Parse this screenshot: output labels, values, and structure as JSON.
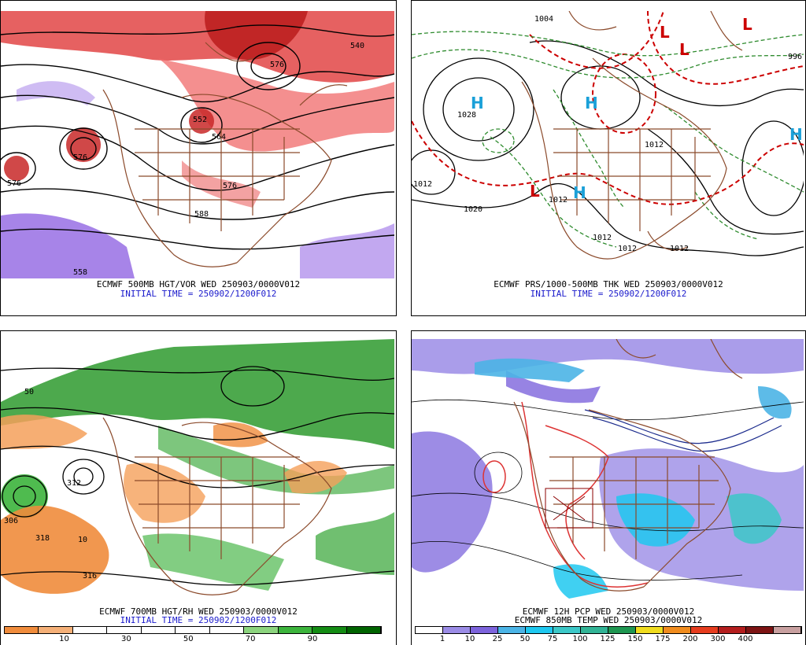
{
  "panels": {
    "top_left": {
      "caption_line1": "ECMWF 500MB HGT/VOR WED 250903/0000V012",
      "caption_line2": "INITIAL TIME = 250902/1200F012",
      "contour_labels": [
        "540",
        "576",
        "576",
        "552",
        "564",
        "576",
        "588",
        "558",
        "576"
      ]
    },
    "top_right": {
      "caption_line1": "ECMWF PRS/1000-500MB THK WED 250903/0000V012",
      "caption_line2": "INITIAL TIME = 250902/1200F012",
      "contour_labels": [
        "1028",
        "1012",
        "1020",
        "1012",
        "1012",
        "1012",
        "1012",
        "996",
        "1004",
        "1012"
      ],
      "high_symbols": [
        "H",
        "H",
        "H",
        "H"
      ],
      "low_symbols": [
        "L",
        "L",
        "L",
        "L"
      ]
    },
    "bottom_left": {
      "caption_line1": "ECMWF 700MB HGT/RH WED 250903/0000V012",
      "caption_line2": "INITIAL TIME = 250902/1200F012",
      "contour_labels": [
        "318",
        "312",
        "316",
        "306",
        "50",
        "10"
      ],
      "colorbar": {
        "colors": [
          "#f08c3c",
          "#f5b078",
          "#ffffff",
          "#ffffff",
          "#ffffff",
          "#ffffff",
          "#ffffff",
          "#8cd47e",
          "#3cb43c",
          "#148c14",
          "#006400"
        ],
        "tick_labels": [
          "10",
          "30",
          "50",
          "70",
          "90"
        ]
      }
    },
    "bottom_right": {
      "caption_line1": "ECMWF 12H PCP WED 250903/0000V012",
      "caption_line2": "ECMWF 850MB TEMP WED 250903/0000V012",
      "colorbar": {
        "colors": [
          "#ffffff",
          "#9b8ce6",
          "#7d64dc",
          "#4bb4e6",
          "#1ec8f0",
          "#3cc8c8",
          "#32b496",
          "#1e9650",
          "#f0dc1e",
          "#f08c1e",
          "#e63c1e",
          "#b41e1e",
          "#7d1414",
          "#c8a0a0"
        ],
        "tick_labels": [
          "1",
          "10",
          "25",
          "50",
          "75",
          "100",
          "125",
          "150",
          "175",
          "200",
          "300",
          "400"
        ]
      }
    }
  }
}
